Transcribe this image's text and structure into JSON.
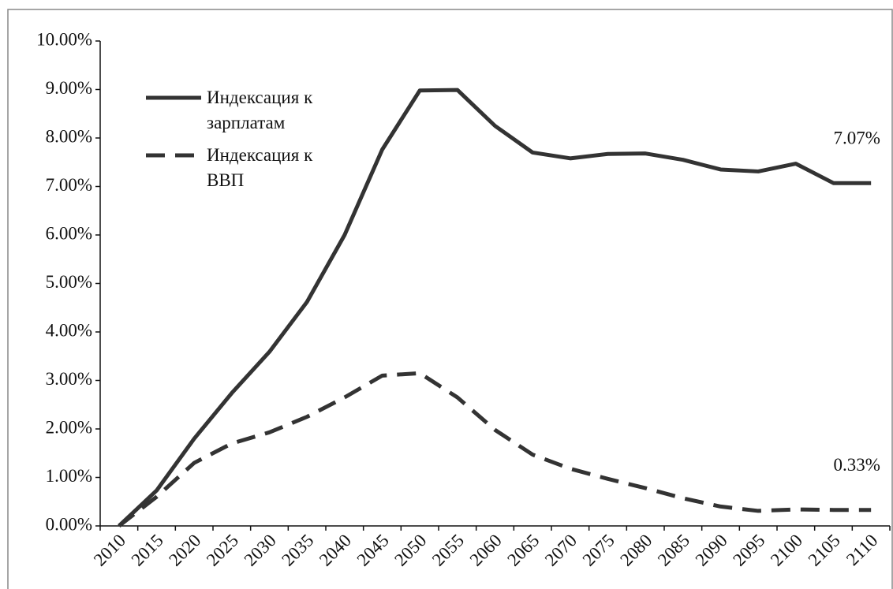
{
  "chart_data": {
    "type": "line",
    "categories": [
      "2010",
      "2015",
      "2020",
      "2025",
      "2030",
      "2035",
      "2040",
      "2045",
      "2050",
      "2055",
      "2060",
      "2065",
      "2070",
      "2075",
      "2080",
      "2085",
      "2090",
      "2095",
      "2100",
      "2105",
      "2110"
    ],
    "series": [
      {
        "name": "Индексация к зарплатам",
        "color": "#333333",
        "dash": false,
        "values": [
          0,
          0.73,
          1.8,
          2.74,
          3.59,
          4.62,
          6.0,
          7.76,
          8.98,
          8.99,
          8.25,
          7.7,
          7.58,
          7.67,
          7.68,
          7.55,
          7.35,
          7.31,
          7.47,
          7.07,
          7.07
        ],
        "value_labels": [
          null,
          null,
          null,
          null,
          null,
          null,
          null,
          null,
          null,
          null,
          null,
          null,
          null,
          null,
          null,
          null,
          null,
          null,
          null,
          null,
          "7.07%"
        ]
      },
      {
        "name": "Индексация к ВВП",
        "color": "#333333",
        "dash": true,
        "values": [
          0,
          0.6,
          1.3,
          1.7,
          1.93,
          2.25,
          2.65,
          3.1,
          3.15,
          2.65,
          1.98,
          1.47,
          1.18,
          0.97,
          0.78,
          0.57,
          0.4,
          0.31,
          0.34,
          0.33,
          0.33
        ],
        "value_labels": [
          null,
          null,
          null,
          null,
          null,
          null,
          null,
          null,
          null,
          null,
          null,
          null,
          null,
          null,
          null,
          null,
          null,
          null,
          null,
          null,
          "0.33%"
        ]
      }
    ],
    "ylim": [
      0,
      10
    ],
    "yticks": [
      {
        "value": 0,
        "label": "0.00%"
      },
      {
        "value": 1,
        "label": "1.00%"
      },
      {
        "value": 2,
        "label": "2.00%"
      },
      {
        "value": 3,
        "label": "3.00%"
      },
      {
        "value": 4,
        "label": "4.00%"
      },
      {
        "value": 5,
        "label": "5.00%"
      },
      {
        "value": 6,
        "label": "6.00%"
      },
      {
        "value": 7,
        "label": "7.00%"
      },
      {
        "value": 8,
        "label": "8.00%"
      },
      {
        "value": 9,
        "label": "9.00%"
      },
      {
        "value": 10,
        "label": "10.00%"
      }
    ],
    "legend": "top-left",
    "grid": false
  }
}
